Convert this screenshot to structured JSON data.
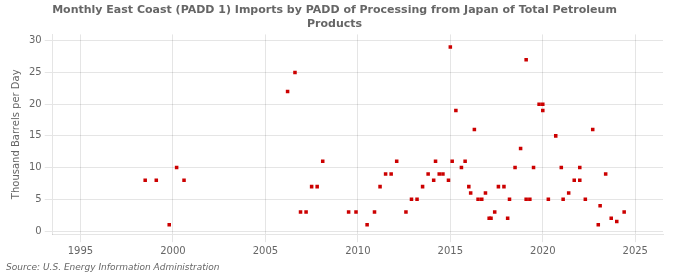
{
  "chart_data": {
    "type": "scatter",
    "title": "Monthly East Coast (PADD 1) Imports by PADD of Processing from Japan of Total Petroleum\nProducts",
    "ylabel": "Thousand Barrels per Day",
    "source": "Source: U.S. Energy Information Administration",
    "color": "#cc0000",
    "marker": "square",
    "grid": true,
    "xlim": [
      1993.5,
      2026.5
    ],
    "ylim": [
      -0.5,
      31
    ],
    "xticks": [
      1995,
      2000,
      2005,
      2010,
      2015,
      2020,
      2025
    ],
    "yticks": [
      0,
      5,
      10,
      15,
      20,
      25,
      30
    ],
    "x": [
      1998.5,
      1999.1,
      1999.8,
      2000.2,
      2000.6,
      2006.2,
      2006.6,
      2006.9,
      2007.2,
      2007.5,
      2007.8,
      2008.1,
      2009.5,
      2009.9,
      2010.5,
      2010.9,
      2011.2,
      2011.5,
      2011.8,
      2012.1,
      2012.6,
      2012.9,
      2013.2,
      2013.5,
      2013.8,
      2014.1,
      2014.2,
      2014.4,
      2014.6,
      2014.9,
      2015.1,
      2015.0,
      2015.3,
      2015.6,
      2015.8,
      2016.0,
      2016.1,
      2016.3,
      2016.5,
      2016.7,
      2016.9,
      2017.1,
      2017.2,
      2017.4,
      2017.6,
      2017.9,
      2018.1,
      2018.2,
      2018.5,
      2018.8,
      2019.1,
      2019.1,
      2019.3,
      2019.5,
      2019.8,
      2020.0,
      2020.0,
      2020.3,
      2020.7,
      2021.0,
      2021.1,
      2021.4,
      2021.7,
      2022.0,
      2022.0,
      2022.3,
      2022.7,
      2023.0,
      2023.1,
      2023.4,
      2023.7,
      2024.0,
      2024.4
    ],
    "values": [
      8.0,
      8.0,
      1.0,
      10.0,
      8.0,
      22.0,
      25.0,
      3.0,
      3.0,
      7.0,
      7.0,
      11.0,
      3.0,
      3.0,
      1.0,
      3.0,
      7.0,
      9.0,
      9.0,
      11.0,
      3.0,
      5.0,
      5.0,
      7.0,
      9.0,
      8.0,
      11.0,
      9.0,
      9.0,
      8.0,
      11.0,
      29.0,
      19.0,
      10.0,
      11.0,
      7.0,
      6.0,
      16.0,
      5.0,
      5.0,
      6.0,
      2.0,
      2.0,
      3.0,
      7.0,
      7.0,
      2.0,
      5.0,
      10.0,
      13.0,
      5.0,
      27.0,
      5.0,
      10.0,
      20.0,
      19.0,
      20.0,
      5.0,
      15.0,
      10.0,
      5.0,
      6.0,
      8.0,
      8.0,
      10.0,
      5.0,
      16.0,
      1.0,
      4.0,
      9.0,
      2.0,
      1.5,
      3.0
    ]
  }
}
